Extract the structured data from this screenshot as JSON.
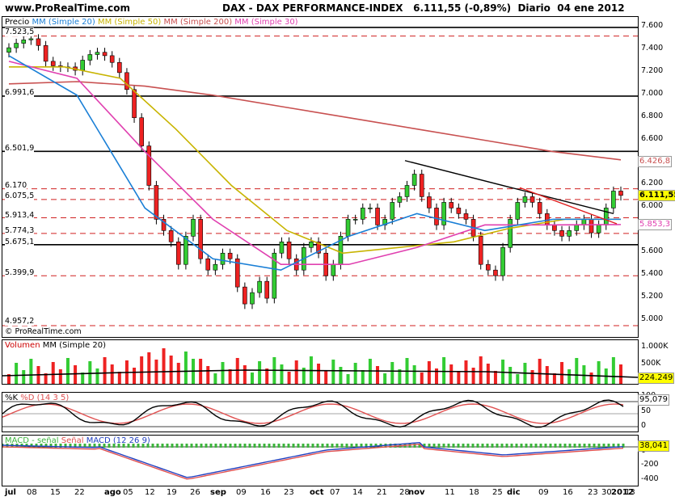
{
  "header": {
    "site": "www.ProRealTime.com",
    "title": "DAX - DAX PERFORMANCE-INDEX",
    "last": "6.111,55",
    "change": "(-0,89%)",
    "period": "Diario",
    "date": "04 ene 2012"
  },
  "price_panel": {
    "legend": [
      {
        "text": "Precio",
        "color": "#000000"
      },
      {
        "text": "MM (Simple 20)",
        "color": "#1a7fd6"
      },
      {
        "text": "MM (Simple 50)",
        "color": "#c8b400"
      },
      {
        "text": "MM (Simple 200)",
        "color": "#c85050"
      },
      {
        "text": "MM (Simple 30)",
        "color": "#e040b0"
      }
    ],
    "level_labels": [
      "7.523,5",
      "6.991,6",
      "6.501,9",
      "6.170",
      "6.075,5",
      "5.913,4",
      "5.774,3",
      "5.675,1",
      "5.399,9",
      "4.957,2"
    ],
    "watermark": "© ProRealTime.com",
    "y_ticks": [
      "7.600",
      "7.400",
      "7.200",
      "7.000",
      "6.800",
      "6.600",
      "6.400",
      "6.200",
      "6.000",
      "5.800",
      "5.600",
      "5.400",
      "5.200",
      "5.000"
    ],
    "right_tags": [
      {
        "text": "6.426,8",
        "color": "#c85050"
      },
      {
        "text": "6.111,55",
        "color": "#000000",
        "bg": "#ffff00"
      },
      {
        "text": "5.853,3",
        "color": "#e040b0"
      }
    ]
  },
  "volume_panel": {
    "legend_a": "Volumen",
    "legend_b": "MM (Simple 20)",
    "y_ticks": [
      "1.000K",
      "500K"
    ],
    "tag": "224.249"
  },
  "stoch_panel": {
    "legend_a": "%K",
    "legend_b": "%D",
    "legend_c": "(14 3 5)",
    "y_ticks": [
      "100",
      "50",
      "0"
    ],
    "tag": "95,079"
  },
  "macd_panel": {
    "legend_a": "MACD - señal",
    "legend_b": "Señal",
    "legend_c": "MACD",
    "legend_d": "(12 26 9)",
    "y_ticks": [
      "0",
      "-200",
      "-400"
    ],
    "tag": "38,041"
  },
  "x_axis": [
    {
      "t": "jul",
      "m": true
    },
    {
      "t": "08"
    },
    {
      "t": "15"
    },
    {
      "t": "22"
    },
    {
      "t": "ago",
      "m": true
    },
    {
      "t": "05"
    },
    {
      "t": "12"
    },
    {
      "t": "19"
    },
    {
      "t": "26"
    },
    {
      "t": "sep",
      "m": true
    },
    {
      "t": "09"
    },
    {
      "t": "16"
    },
    {
      "t": "23"
    },
    {
      "t": "oct",
      "m": true
    },
    {
      "t": "07"
    },
    {
      "t": "14"
    },
    {
      "t": "21"
    },
    {
      "t": "28"
    },
    {
      "t": "nov",
      "m": true
    },
    {
      "t": "11"
    },
    {
      "t": "18"
    },
    {
      "t": "25"
    },
    {
      "t": "dic",
      "m": true
    },
    {
      "t": "09"
    },
    {
      "t": "16"
    },
    {
      "t": "23"
    },
    {
      "t": "30"
    },
    {
      "t": "2012",
      "m": true
    },
    {
      "t": "13"
    }
  ],
  "chart_data": {
    "type": "candlestick",
    "x_range": [
      "jul 2011",
      "ene 2012"
    ],
    "price_ylim": [
      4900,
      7650
    ],
    "horizontal_levels": {
      "solid": [
        7600,
        6991.6,
        6501.9,
        5675.1
      ],
      "dashed": [
        7523.5,
        6170,
        6075.5,
        5913.4,
        5774.3,
        5399.9,
        4957.2
      ]
    },
    "close_approx": [
      7420,
      7460,
      7490,
      7500,
      7440,
      7300,
      7260,
      7250,
      7250,
      7220,
      7310,
      7360,
      7380,
      7350,
      7290,
      7200,
      7050,
      6800,
      6550,
      6200,
      5900,
      5800,
      5700,
      5500,
      5750,
      5900,
      5550,
      5450,
      5500,
      5600,
      5550,
      5300,
      5150,
      5250,
      5350,
      5200,
      5600,
      5700,
      5550,
      5450,
      5650,
      5700,
      5600,
      5400,
      5500,
      5750,
      5900,
      5900,
      6000,
      6000,
      5850,
      5900,
      6050,
      6100,
      6200,
      6300,
      6100,
      6000,
      5850,
      6050,
      6000,
      5950,
      5900,
      5750,
      5500,
      5450,
      5400,
      5650,
      5900,
      6050,
      6100,
      6050,
      5950,
      5850,
      5800,
      5750,
      5800,
      5850,
      5900,
      5780,
      5850,
      6000,
      6150,
      6111.55
    ],
    "sma200_approx": [
      7100,
      7120,
      7080,
      7000,
      6900,
      6800,
      6700,
      6600,
      6500,
      6426.8
    ],
    "sma50_approx": [
      7250,
      7250,
      7150,
      6700,
      6200,
      5800,
      5600,
      5650,
      5700,
      5820,
      5900,
      5900
    ],
    "sma30_approx": [
      7300,
      7150,
      6500,
      5900,
      5500,
      5500,
      5650,
      5850,
      5850,
      5853.3
    ],
    "sma20_approx": [
      7350,
      7000,
      6000,
      5550,
      5450,
      5750,
      5950,
      5800,
      5900,
      5900
    ],
    "volume_sma20_last": 224249,
    "stochastic_last": 95.079,
    "macd_last": 38.041
  }
}
